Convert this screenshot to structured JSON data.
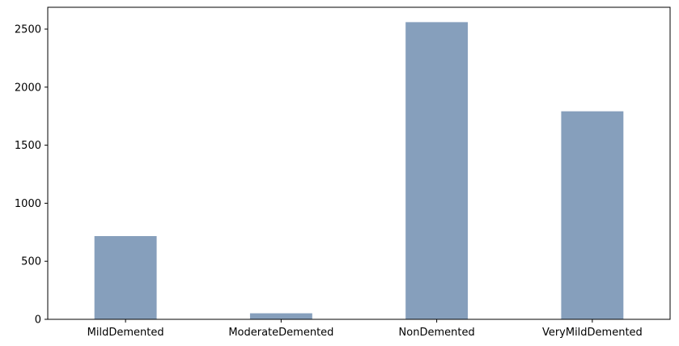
{
  "chart_data": {
    "type": "bar",
    "categories": [
      "MildDemented",
      "ModerateDemented",
      "NonDemented",
      "VeryMildDemented"
    ],
    "values": [
      717,
      52,
      2560,
      1792
    ],
    "title": "",
    "xlabel": "",
    "ylabel": "",
    "ylim": [
      0,
      2688
    ],
    "yticks": [
      0,
      500,
      1000,
      1500,
      2000,
      2500
    ],
    "grid": false,
    "bar_color": "#869fbc"
  }
}
